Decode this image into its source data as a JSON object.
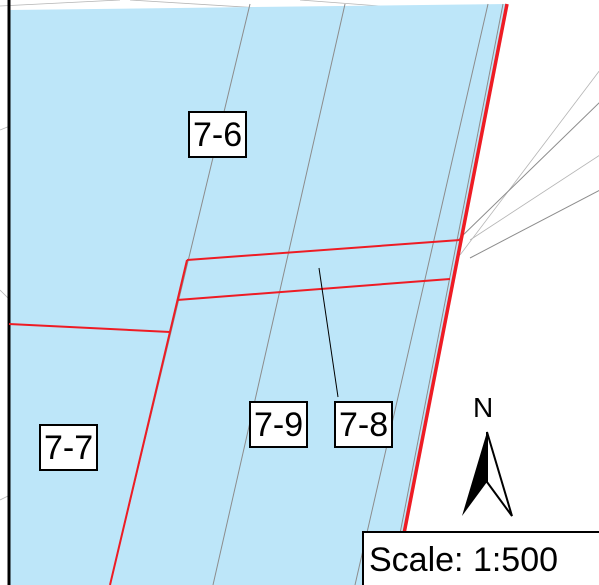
{
  "map": {
    "parcel_fill_color": "#bde6f9",
    "boundary_color": "#ee1c24",
    "line_color": "#8c8c8c",
    "parcels": [
      {
        "id": "parcel-7-6",
        "label": "7-6"
      },
      {
        "id": "parcel-7-7",
        "label": "7-7"
      },
      {
        "id": "parcel-7-9",
        "label": "7-9"
      },
      {
        "id": "parcel-7-8",
        "label": "7-8"
      }
    ],
    "north_arrow": {
      "letter": "N",
      "icon": "north-arrow-icon"
    },
    "scale_bar": {
      "text": "Scale: 1:500"
    }
  }
}
